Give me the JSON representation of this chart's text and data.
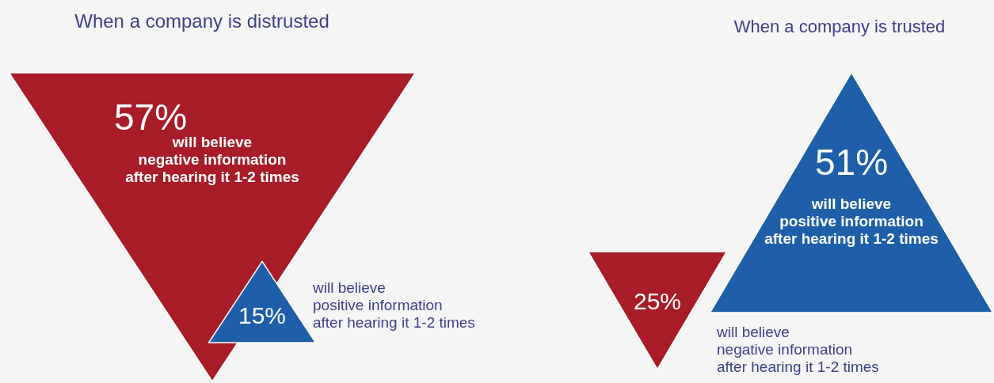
{
  "chart_data": [
    {
      "type": "other",
      "title": "When a company is distrusted",
      "categories": [
        "will believe\nnegative information\nafter hearing it 1-2 times",
        "will believe\npositive information\nafter hearing it 1-2 times"
      ],
      "values": [
        57,
        15
      ],
      "value_labels": [
        "57%",
        "15%"
      ],
      "colors": [
        "#a81c27",
        "#1f5fa9"
      ]
    },
    {
      "type": "other",
      "title": "When a company is trusted",
      "categories": [
        "will believe\nnegative information\nafter hearing it 1-2 times",
        "will believe\npositive information\nafter hearing it 1-2 times"
      ],
      "values": [
        25,
        51
      ],
      "value_labels": [
        "25%",
        "51%"
      ],
      "colors": [
        "#a81c27",
        "#1f5fa9"
      ]
    }
  ]
}
